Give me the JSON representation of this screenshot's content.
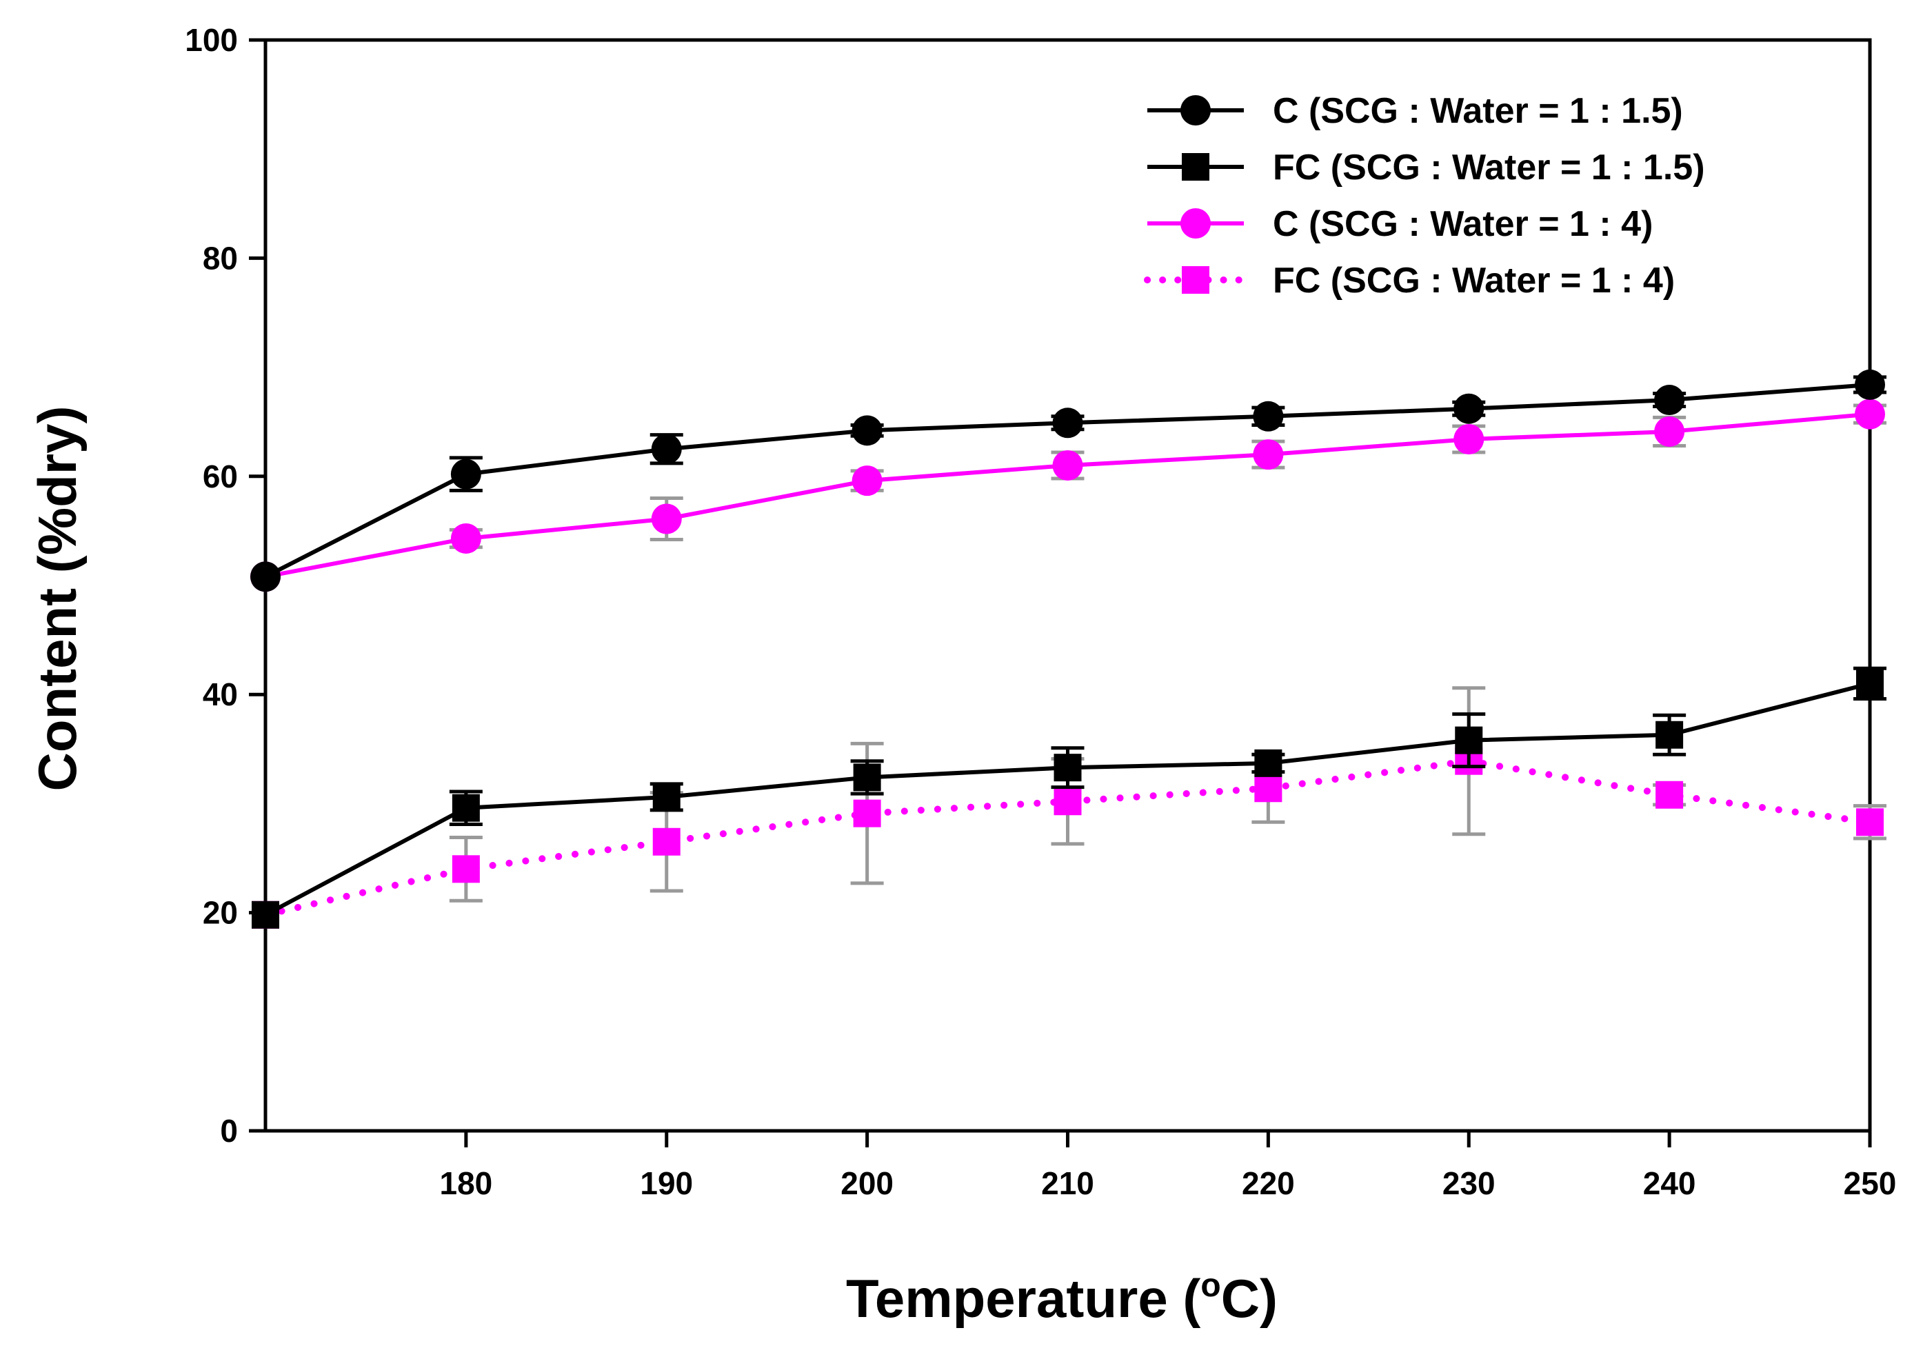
{
  "chart_data": {
    "type": "line",
    "xlabel": "Temperature (",
    "xlabel_sup": "o",
    "xlabel_suffix": "C)",
    "ylabel": "Content (%dry)",
    "xlim": [
      170,
      250
    ],
    "ylim": [
      0,
      100
    ],
    "x_ticks": [
      "180",
      "190",
      "200",
      "210",
      "220",
      "230",
      "240",
      "250"
    ],
    "y_ticks": [
      "0",
      "20",
      "40",
      "60",
      "80",
      "100"
    ],
    "grid": false,
    "legend_position": "top-right",
    "x": [
      170,
      180,
      190,
      200,
      210,
      220,
      230,
      240,
      250
    ],
    "series": [
      {
        "name": "C (SCG : Water = 1 : 1.5)",
        "color": "#000000",
        "marker": "circle",
        "line_style": "solid",
        "error_color": "#000000",
        "values": [
          50.8,
          60.2,
          62.5,
          64.2,
          64.9,
          65.5,
          66.2,
          67.0,
          68.4
        ],
        "errors": [
          0,
          1.5,
          1.3,
          0.5,
          0.6,
          0.8,
          0.6,
          0.6,
          0.7
        ]
      },
      {
        "name": "FC (SCG : Water = 1 : 1.5)",
        "color": "#000000",
        "marker": "square",
        "line_style": "solid",
        "error_color": "#000000",
        "values": [
          19.8,
          29.6,
          30.6,
          32.4,
          33.3,
          33.7,
          35.8,
          36.3,
          41.0
        ],
        "errors": [
          0,
          1.5,
          1.2,
          1.5,
          1.8,
          0.8,
          2.4,
          1.8,
          1.4
        ]
      },
      {
        "name": "C (SCG : Water = 1 : 4)",
        "color": "#ff00ff",
        "marker": "circle",
        "line_style": "solid",
        "error_color": "#999999",
        "values": [
          50.8,
          54.3,
          56.1,
          59.6,
          61.0,
          62.0,
          63.4,
          64.1,
          65.7
        ],
        "errors": [
          0,
          0.8,
          1.9,
          0.9,
          1.2,
          1.2,
          1.2,
          1.3,
          0.8
        ]
      },
      {
        "name": "FC (SCG : Water = 1 : 4)",
        "color": "#ff00ff",
        "marker": "square",
        "line_style": "dotted",
        "error_color": "#999999",
        "values": [
          19.8,
          24.0,
          26.5,
          29.1,
          30.2,
          31.4,
          33.9,
          30.8,
          28.3
        ],
        "errors": [
          0,
          2.9,
          4.5,
          6.4,
          3.9,
          3.1,
          6.7,
          0.9,
          1.5
        ]
      }
    ]
  }
}
